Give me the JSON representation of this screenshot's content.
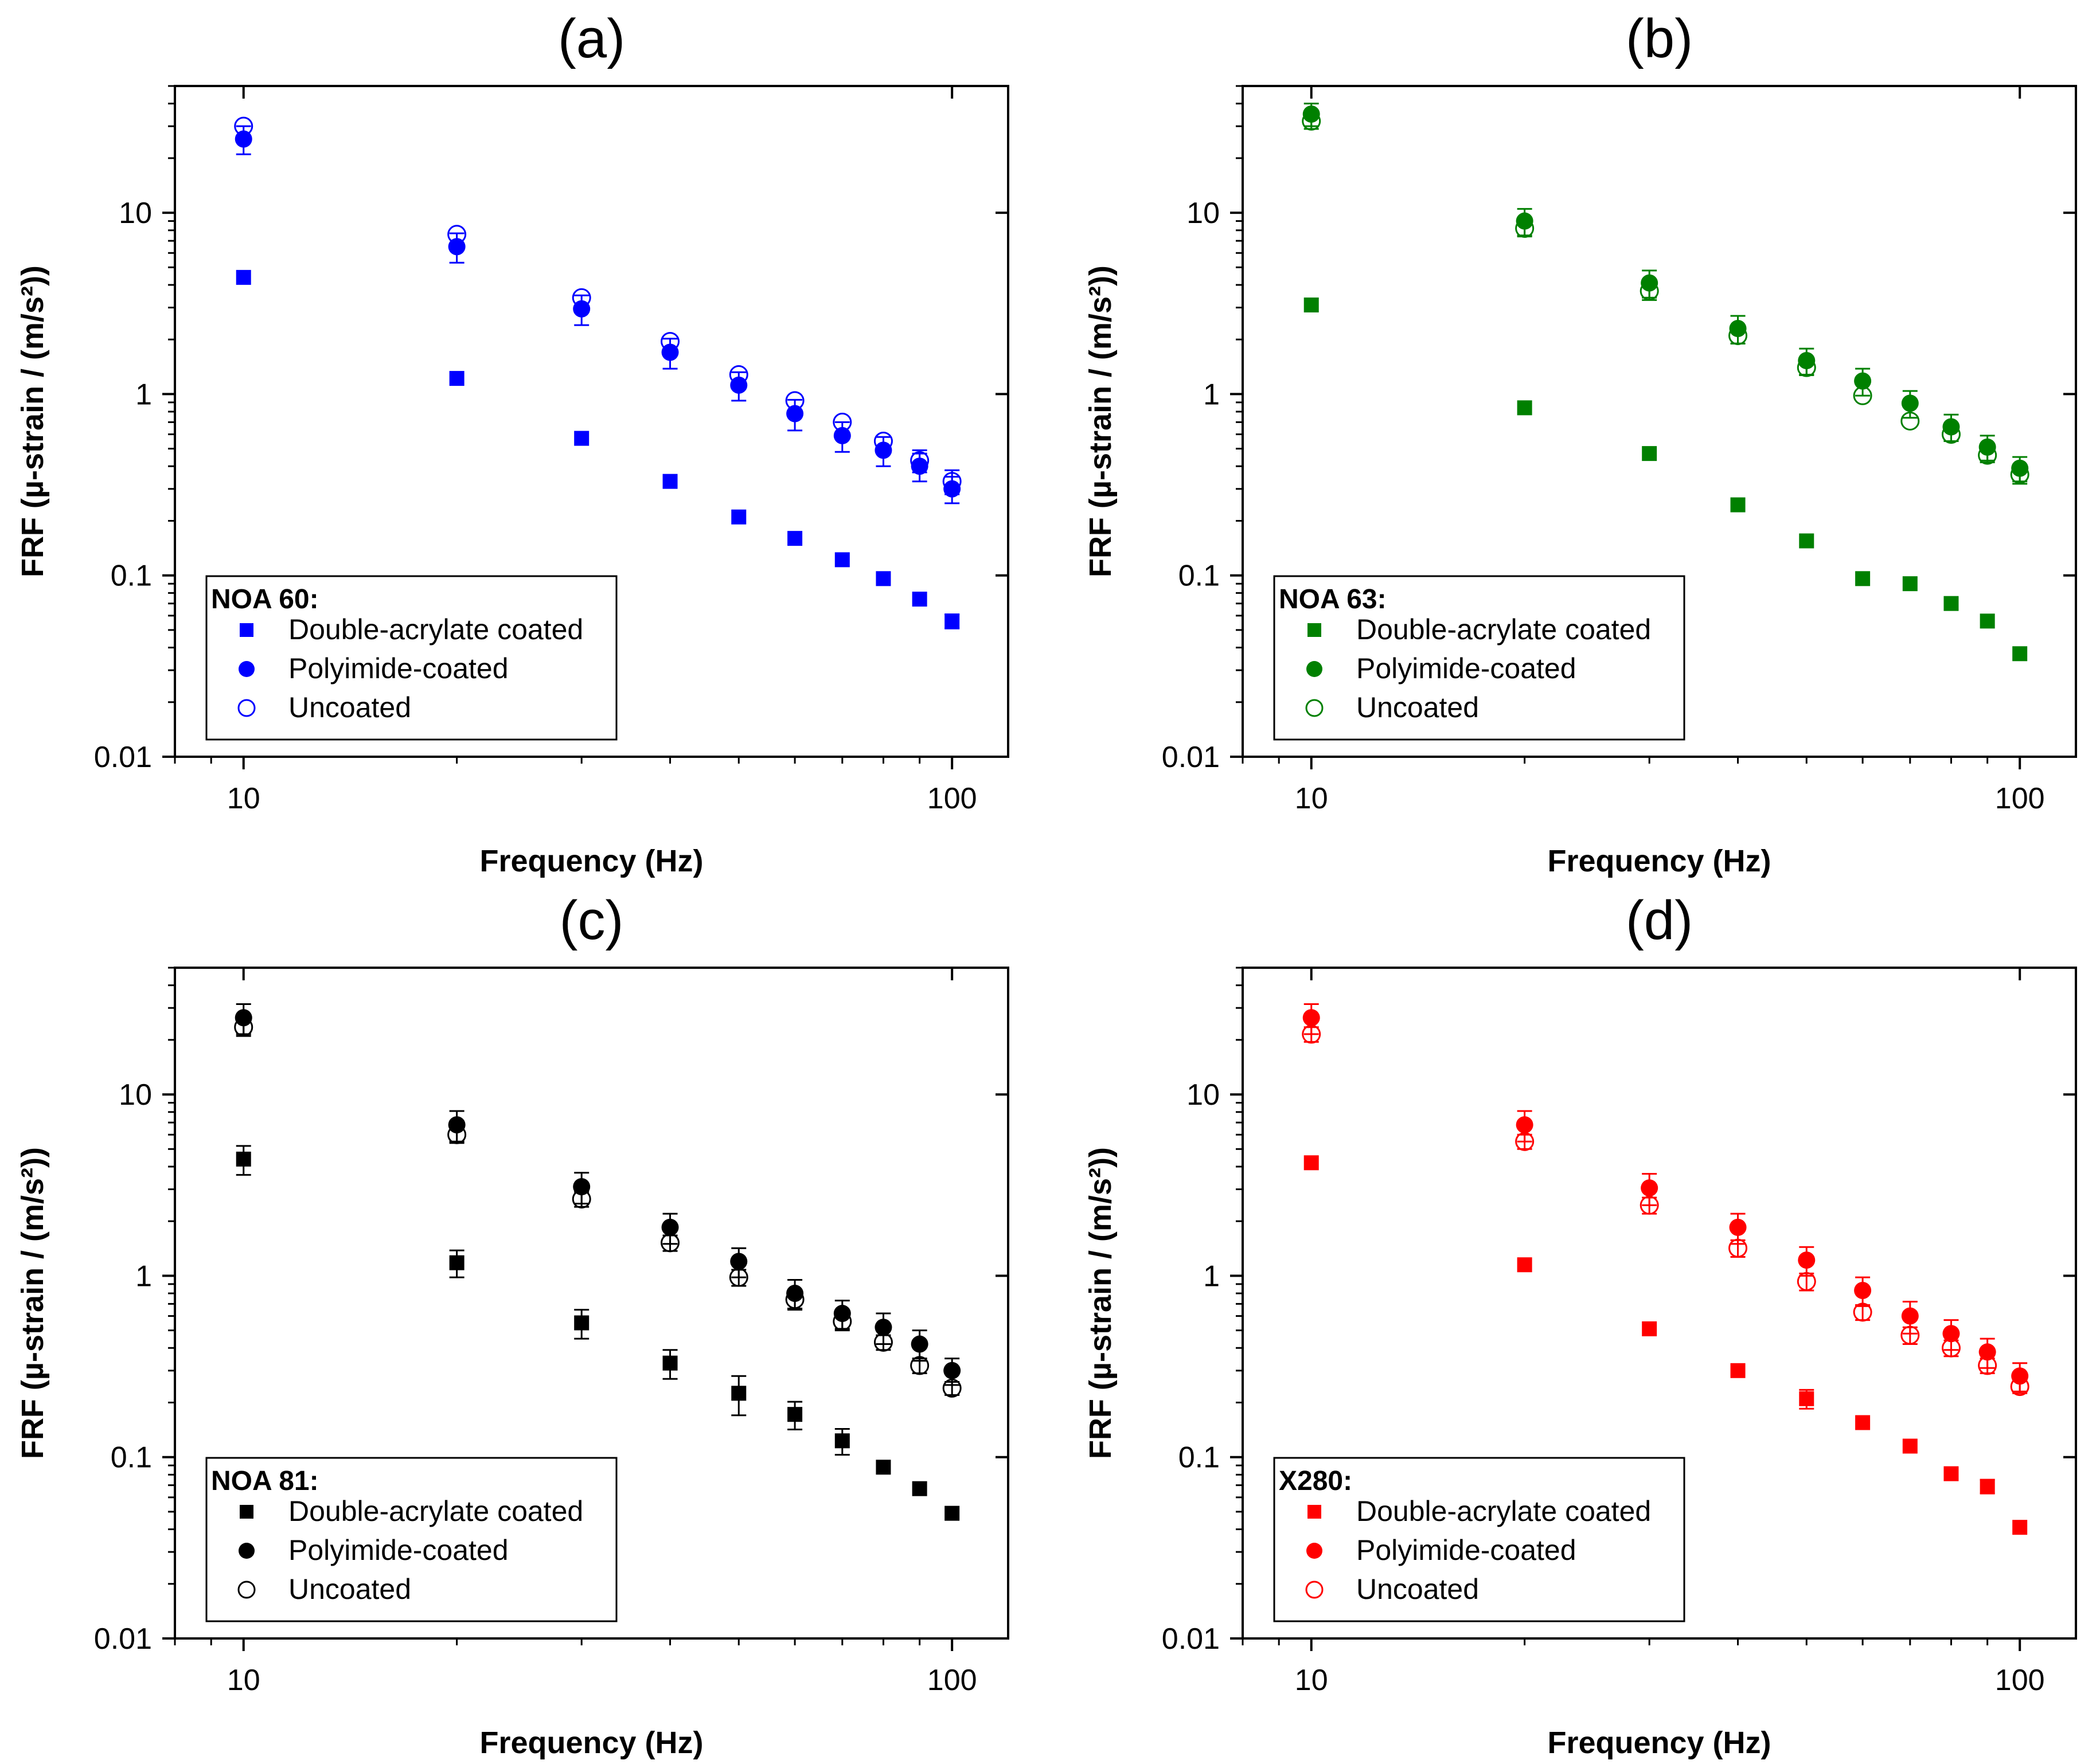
{
  "chart_data": [
    {
      "type": "scatter",
      "panel": "(a)",
      "color": "#0000ff",
      "xscale": "log",
      "yscale": "log",
      "xlabel": "Frequency (Hz)",
      "ylabel": "FRF (µ-strain / (m/s²))",
      "xlim": [
        8,
        120
      ],
      "ylim": [
        0.01,
        50
      ],
      "xticks": [
        {
          "v": 10,
          "label": "10"
        },
        {
          "v": 100,
          "label": "100"
        }
      ],
      "yticks": [
        {
          "v": 0.01,
          "label": "0.01"
        },
        {
          "v": 0.1,
          "label": "0.1"
        },
        {
          "v": 1,
          "label": "1"
        },
        {
          "v": 10,
          "label": "10"
        }
      ],
      "legend_title": "NOA 60:",
      "legend_position": "bottom-left",
      "x": [
        10,
        20,
        30,
        40,
        50,
        60,
        70,
        80,
        90,
        100
      ],
      "series": [
        {
          "name": "Double-acrylate coated",
          "marker": "square",
          "values": [
            4.4,
            1.22,
            0.57,
            0.33,
            0.21,
            0.16,
            0.122,
            0.096,
            0.074,
            0.056
          ],
          "err": [
            0,
            0,
            0,
            0,
            0,
            0,
            0,
            0,
            0,
            0.005
          ]
        },
        {
          "name": "Polyimide-coated",
          "marker": "circle",
          "values": [
            25.5,
            6.5,
            2.95,
            1.7,
            1.12,
            0.78,
            0.59,
            0.49,
            0.4,
            0.3
          ],
          "err": [
            4.5,
            1.2,
            0.55,
            0.32,
            0.2,
            0.15,
            0.11,
            0.09,
            0.07,
            0.05
          ]
        },
        {
          "name": "Uncoated",
          "marker": "open-circle",
          "values": [
            30,
            7.6,
            3.4,
            1.95,
            1.28,
            0.92,
            0.7,
            0.55,
            0.43,
            0.33
          ],
          "err": [
            0,
            0,
            0,
            0,
            0,
            0,
            0,
            0,
            0.06,
            0.05
          ]
        }
      ]
    },
    {
      "type": "scatter",
      "panel": "(b)",
      "color": "#008000",
      "xscale": "log",
      "yscale": "log",
      "xlabel": "Frequency (Hz)",
      "ylabel": "FRF (µ-strain / (m/s²))",
      "xlim": [
        8,
        120
      ],
      "ylim": [
        0.01,
        50
      ],
      "xticks": [
        {
          "v": 10,
          "label": "10"
        },
        {
          "v": 100,
          "label": "100"
        }
      ],
      "yticks": [
        {
          "v": 0.01,
          "label": "0.01"
        },
        {
          "v": 0.1,
          "label": "0.1"
        },
        {
          "v": 1,
          "label": "1"
        },
        {
          "v": 10,
          "label": "10"
        }
      ],
      "legend_title": "NOA 63:",
      "legend_position": "bottom-left",
      "x": [
        10,
        20,
        30,
        40,
        50,
        60,
        70,
        80,
        90,
        100
      ],
      "series": [
        {
          "name": "Double-acrylate coated",
          "marker": "square",
          "values": [
            3.1,
            0.84,
            0.47,
            0.245,
            0.155,
            0.096,
            0.09,
            0.07,
            0.056,
            0.037
          ],
          "err": [
            0,
            0,
            0,
            0,
            0,
            0,
            0,
            0,
            0,
            0
          ]
        },
        {
          "name": "Polyimide-coated",
          "marker": "circle",
          "values": [
            35,
            9.0,
            4.1,
            2.3,
            1.53,
            1.18,
            0.89,
            0.66,
            0.51,
            0.39
          ],
          "err": [
            5,
            1.5,
            0.7,
            0.4,
            0.25,
            0.2,
            0.15,
            0.11,
            0.08,
            0.06
          ]
        },
        {
          "name": "Uncoated",
          "marker": "open-circle",
          "values": [
            32,
            8.2,
            3.7,
            2.1,
            1.4,
            0.98,
            0.71,
            0.6,
            0.46,
            0.36
          ],
          "err": [
            3,
            0.8,
            0.4,
            0.2,
            0.13,
            0,
            0,
            0.05,
            0.04,
            0.04
          ]
        }
      ]
    },
    {
      "type": "scatter",
      "panel": "(c)",
      "color": "#000000",
      "xscale": "log",
      "yscale": "log",
      "xlabel": "Frequency (Hz)",
      "ylabel": "FRF (µ-strain / (m/s²))",
      "xlim": [
        8,
        120
      ],
      "ylim": [
        0.01,
        50
      ],
      "xticks": [
        {
          "v": 10,
          "label": "10"
        },
        {
          "v": 100,
          "label": "100"
        }
      ],
      "yticks": [
        {
          "v": 0.01,
          "label": "0.01"
        },
        {
          "v": 0.1,
          "label": "0.1"
        },
        {
          "v": 1,
          "label": "1"
        },
        {
          "v": 10,
          "label": "10"
        }
      ],
      "legend_title": "NOA 81:",
      "legend_position": "bottom-left",
      "x": [
        10,
        20,
        30,
        40,
        50,
        60,
        70,
        80,
        90,
        100
      ],
      "series": [
        {
          "name": "Double-acrylate coated",
          "marker": "square",
          "values": [
            4.4,
            1.18,
            0.55,
            0.33,
            0.225,
            0.172,
            0.123,
            0.088,
            0.067,
            0.049
          ],
          "err": [
            0.8,
            0.2,
            0.1,
            0.06,
            0.055,
            0.03,
            0.02,
            0,
            0,
            0
          ]
        },
        {
          "name": "Polyimide-coated",
          "marker": "circle",
          "values": [
            26.5,
            6.8,
            3.1,
            1.85,
            1.2,
            0.8,
            0.62,
            0.52,
            0.42,
            0.3
          ],
          "err": [
            5,
            1.3,
            0.6,
            0.35,
            0.22,
            0.15,
            0.11,
            0.1,
            0.08,
            0.05
          ]
        },
        {
          "name": "Uncoated",
          "marker": "open-circle",
          "values": [
            23.5,
            6.0,
            2.65,
            1.52,
            0.98,
            0.74,
            0.56,
            0.43,
            0.32,
            0.24
          ],
          "err": [
            2.5,
            0.6,
            0.25,
            0.15,
            0.1,
            0.08,
            0.06,
            0.04,
            0.03,
            0.02
          ]
        }
      ]
    },
    {
      "type": "scatter",
      "panel": "(d)",
      "color": "#ff0000",
      "xscale": "log",
      "yscale": "log",
      "xlabel": "Frequency (Hz)",
      "ylabel": "FRF (µ-strain / (m/s²))",
      "xlim": [
        8,
        120
      ],
      "ylim": [
        0.01,
        50
      ],
      "xticks": [
        {
          "v": 10,
          "label": "10"
        },
        {
          "v": 100,
          "label": "100"
        }
      ],
      "yticks": [
        {
          "v": 0.01,
          "label": "0.01"
        },
        {
          "v": 0.1,
          "label": "0.1"
        },
        {
          "v": 1,
          "label": "1"
        },
        {
          "v": 10,
          "label": "10"
        }
      ],
      "legend_title": "X280:",
      "legend_position": "bottom-left",
      "x": [
        10,
        20,
        30,
        40,
        50,
        60,
        70,
        80,
        90,
        100
      ],
      "series": [
        {
          "name": "Double-acrylate coated",
          "marker": "square",
          "values": [
            4.2,
            1.15,
            0.51,
            0.3,
            0.21,
            0.155,
            0.115,
            0.081,
            0.069,
            0.041
          ],
          "err": [
            0,
            0,
            0,
            0,
            0.025,
            0,
            0,
            0,
            0.006,
            0
          ]
        },
        {
          "name": "Polyimide-coated",
          "marker": "circle",
          "values": [
            26.5,
            6.8,
            3.05,
            1.85,
            1.22,
            0.83,
            0.6,
            0.48,
            0.38,
            0.28
          ],
          "err": [
            5,
            1.3,
            0.6,
            0.35,
            0.22,
            0.15,
            0.12,
            0.09,
            0.07,
            0.05
          ]
        },
        {
          "name": "Uncoated",
          "marker": "open-circle",
          "values": [
            21.5,
            5.5,
            2.45,
            1.42,
            0.93,
            0.63,
            0.47,
            0.4,
            0.32,
            0.245
          ],
          "err": [
            2,
            0.5,
            0.25,
            0.15,
            0.1,
            0.06,
            0.05,
            0.04,
            0.03,
            0.02
          ]
        }
      ]
    }
  ]
}
